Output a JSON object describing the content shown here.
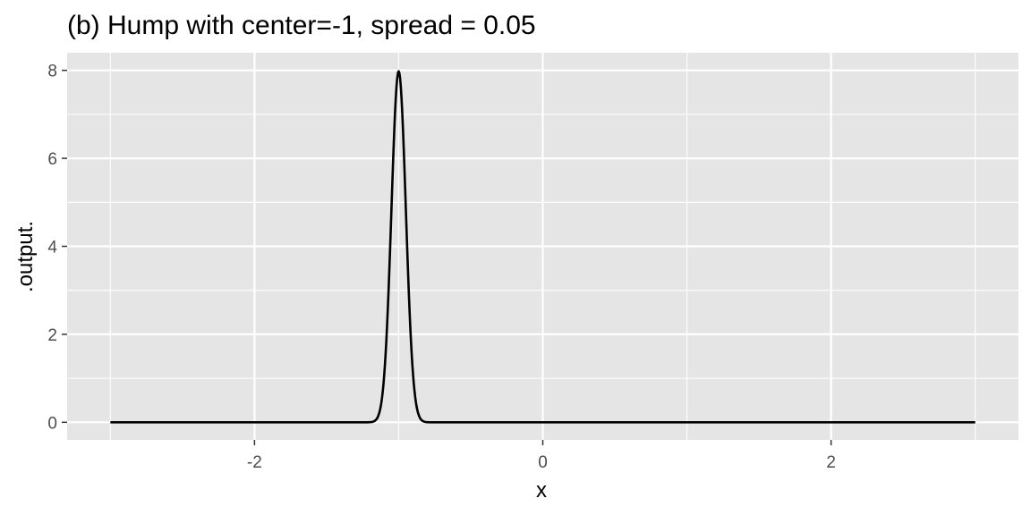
{
  "chart_data": {
    "type": "line",
    "title": "(b) Hump with center=-1, spread = 0.05",
    "xlabel": "x",
    "ylabel": ".output.",
    "xlim": [
      -3.3,
      3.3
    ],
    "ylim": [
      -0.4,
      8.4
    ],
    "x_ticks": [
      -2,
      0,
      2
    ],
    "x_tick_labels": [
      "-2",
      "0",
      "2"
    ],
    "x_minor_ticks": [
      -3,
      -1,
      1,
      3
    ],
    "y_ticks": [
      0,
      2,
      4,
      6,
      8
    ],
    "y_tick_labels": [
      "0",
      "2",
      "4",
      "6",
      "8"
    ],
    "y_minor_ticks": [
      1,
      3,
      5,
      7
    ],
    "grid": true,
    "series": [
      {
        "function": "gaussian_density",
        "x_range": [
          -3,
          3
        ],
        "center": -1,
        "spread": 0.05,
        "peak": 7.98,
        "color": "#000000"
      }
    ]
  },
  "colors": {
    "panel_background": "#e5e5e5",
    "grid": "#ffffff",
    "tick_mark": "#333333"
  }
}
